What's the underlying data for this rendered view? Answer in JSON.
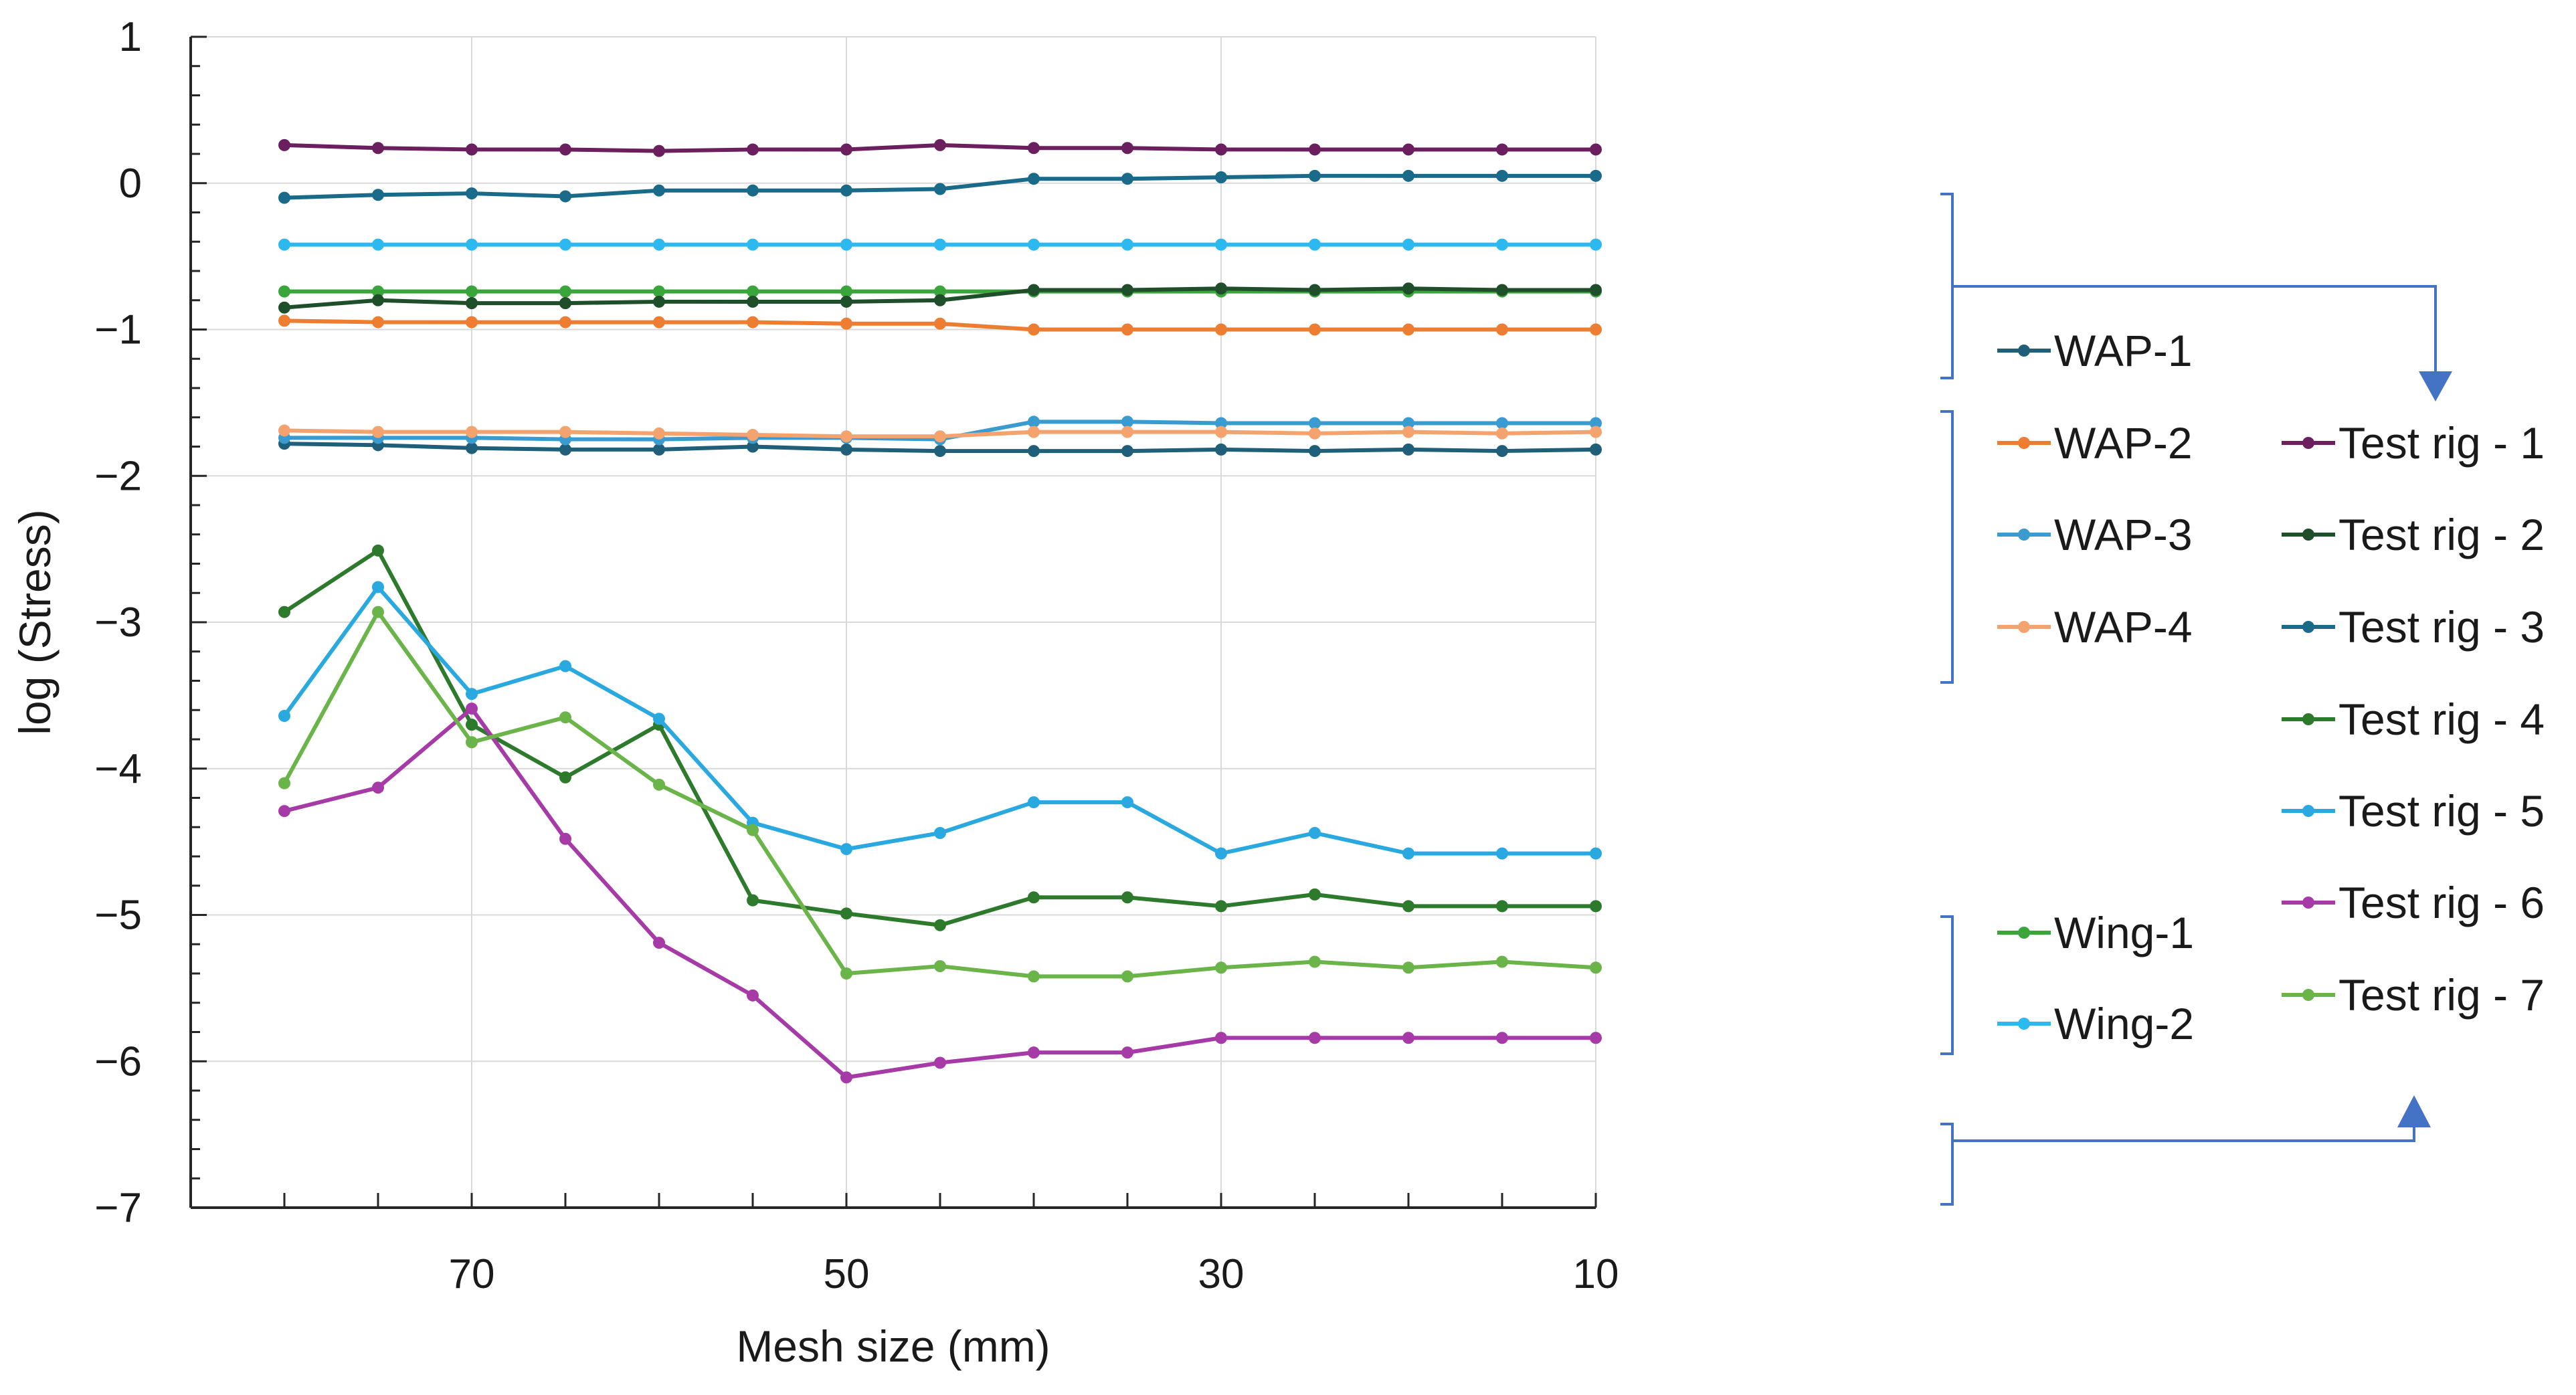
{
  "chart_data": {
    "type": "line",
    "title": "",
    "xlabel": "Mesh size (mm)",
    "ylabel": "log (Stress)",
    "xlim": [
      85,
      10
    ],
    "ylim": [
      -7,
      1
    ],
    "x_ticks": [
      70,
      50,
      30,
      10
    ],
    "y_ticks": [
      1,
      0,
      -1,
      -2,
      -3,
      -4,
      -5,
      -6,
      -7
    ],
    "y_tick_labels": [
      "1",
      "0",
      "−1",
      "−2",
      "−3",
      "−4",
      "−5",
      "−6",
      "−7"
    ],
    "grid": true,
    "x": [
      80,
      75,
      70,
      65,
      60,
      55,
      50,
      45,
      40,
      35,
      30,
      25,
      20,
      15,
      10
    ],
    "series": [
      {
        "name": "WAP-1",
        "color": "#1f5f7a",
        "values": [
          -1.78,
          -1.79,
          -1.81,
          -1.82,
          -1.82,
          -1.8,
          -1.82,
          -1.83,
          -1.83,
          -1.83,
          -1.82,
          -1.83,
          -1.82,
          -1.83,
          -1.82
        ]
      },
      {
        "name": "WAP-2",
        "color": "#ed7d31",
        "values": [
          -0.94,
          -0.95,
          -0.95,
          -0.95,
          -0.95,
          -0.95,
          -0.96,
          -0.96,
          -1.0,
          -1.0,
          -1.0,
          -1.0,
          -1.0,
          -1.0,
          -1.0
        ]
      },
      {
        "name": "WAP-3",
        "color": "#3a9bd1",
        "values": [
          -1.74,
          -1.74,
          -1.74,
          -1.75,
          -1.75,
          -1.74,
          -1.74,
          -1.75,
          -1.63,
          -1.63,
          -1.64,
          -1.64,
          -1.64,
          -1.64,
          -1.64
        ]
      },
      {
        "name": "WAP-4",
        "color": "#f4a36e",
        "values": [
          -1.69,
          -1.7,
          -1.7,
          -1.7,
          -1.71,
          -1.72,
          -1.73,
          -1.73,
          -1.7,
          -1.7,
          -1.7,
          -1.71,
          -1.7,
          -1.71,
          -1.7
        ]
      },
      {
        "name": "Wing-1",
        "color": "#3aa53a",
        "values": [
          -0.74,
          -0.74,
          -0.74,
          -0.74,
          -0.74,
          -0.74,
          -0.74,
          -0.74,
          -0.74,
          -0.74,
          -0.74,
          -0.74,
          -0.74,
          -0.74,
          -0.74
        ]
      },
      {
        "name": "Wing-2",
        "color": "#2eb8f0",
        "values": [
          -0.42,
          -0.42,
          -0.42,
          -0.42,
          -0.42,
          -0.42,
          -0.42,
          -0.42,
          -0.42,
          -0.42,
          -0.42,
          -0.42,
          -0.42,
          -0.42,
          -0.42
        ]
      },
      {
        "name": "Test rig - 1",
        "color": "#6b1f5f",
        "values": [
          0.26,
          0.24,
          0.23,
          0.23,
          0.22,
          0.23,
          0.23,
          0.26,
          0.24,
          0.24,
          0.23,
          0.23,
          0.23,
          0.23,
          0.23
        ]
      },
      {
        "name": "Test rig - 2",
        "color": "#1f4e2a",
        "values": [
          -0.85,
          -0.8,
          -0.82,
          -0.82,
          -0.81,
          -0.81,
          -0.81,
          -0.8,
          -0.73,
          -0.73,
          -0.72,
          -0.73,
          -0.72,
          -0.73,
          -0.73
        ]
      },
      {
        "name": "Test rig - 3",
        "color": "#1a6a8a",
        "values": [
          -0.1,
          -0.08,
          -0.07,
          -0.09,
          -0.05,
          -0.05,
          -0.05,
          -0.04,
          0.03,
          0.03,
          0.04,
          0.05,
          0.05,
          0.05,
          0.05
        ]
      },
      {
        "name": "Test rig - 4",
        "color": "#2d7a2d",
        "values": [
          -2.93,
          -2.51,
          -3.7,
          -4.06,
          -3.7,
          -4.9,
          -4.99,
          -5.07,
          -4.88,
          -4.88,
          -4.94,
          -4.86,
          -4.94,
          -4.94,
          -4.94
        ]
      },
      {
        "name": "Test rig - 5",
        "color": "#2aa8e0",
        "values": [
          -3.64,
          -2.76,
          -3.49,
          -3.3,
          -3.66,
          -4.37,
          -4.55,
          -4.44,
          -4.23,
          -4.23,
          -4.58,
          -4.44,
          -4.58,
          -4.58,
          -4.58
        ]
      },
      {
        "name": "Test rig - 6",
        "color": "#a63aa6",
        "values": [
          -4.29,
          -4.13,
          -3.59,
          -4.48,
          -5.19,
          -5.55,
          -6.11,
          -6.01,
          -5.94,
          -5.94,
          -5.84,
          -5.84,
          -5.84,
          -5.84,
          -5.84
        ]
      },
      {
        "name": "Test rig - 7",
        "color": "#6ab44a",
        "values": [
          -4.1,
          -2.93,
          -3.82,
          -3.65,
          -4.11,
          -4.42,
          -5.4,
          -5.35,
          -5.42,
          -5.42,
          -5.36,
          -5.32,
          -5.36,
          -5.32,
          -5.36
        ]
      }
    ]
  }
}
